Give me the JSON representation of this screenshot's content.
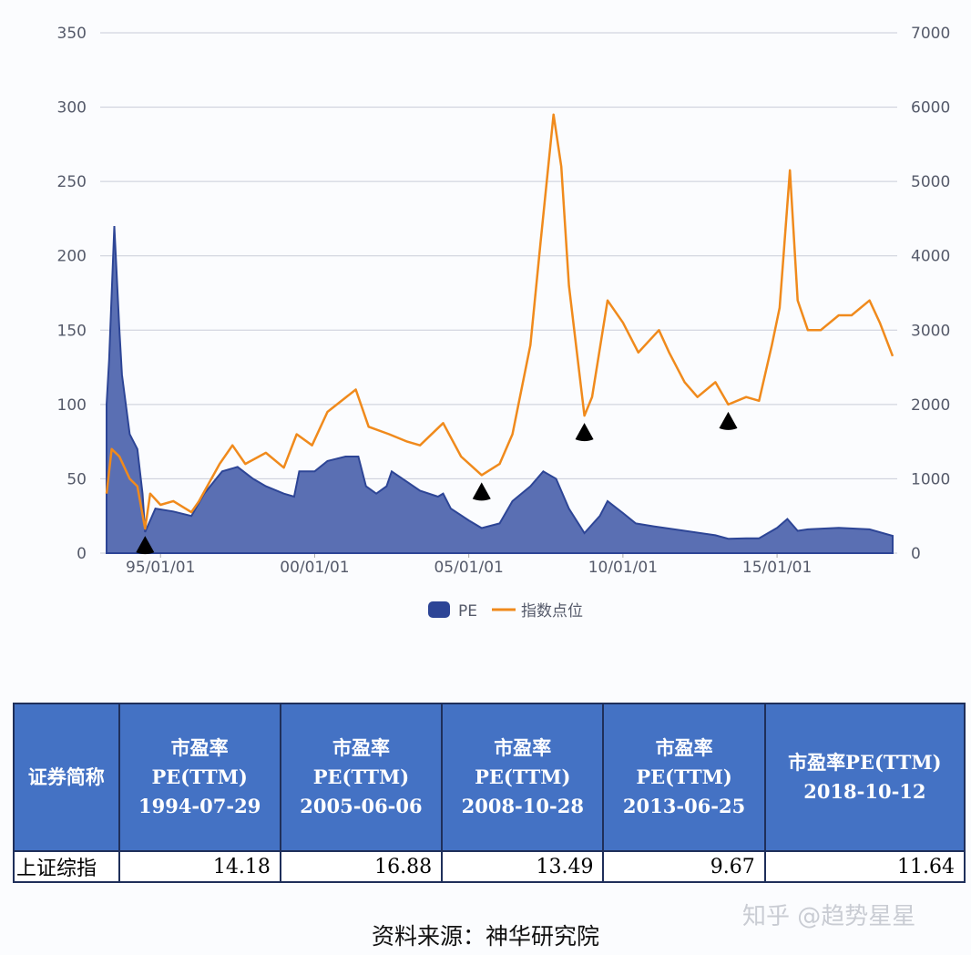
{
  "chart_data": {
    "type": "area+line",
    "x_ticks": [
      "95/01/01",
      "00/01/01",
      "05/01/01",
      "10/01/01",
      "15/01/01"
    ],
    "x_tick_dates": [
      "1995-01",
      "2000-01",
      "2005-01",
      "2010-01",
      "2015-01"
    ],
    "xlim": [
      "1993-04",
      "2018-10"
    ],
    "ylim_left": [
      0,
      350
    ],
    "yticks_left": [
      0,
      50,
      100,
      150,
      200,
      250,
      300,
      350
    ],
    "ylim_right": [
      0,
      7000
    ],
    "yticks_right": [
      0,
      1000,
      2000,
      3000,
      4000,
      5000,
      6000,
      7000
    ],
    "grid": true,
    "legend_position": "bottom",
    "series": [
      {
        "name": "PE",
        "type": "area",
        "axis": "left",
        "color": "#3f5aa8",
        "points": [
          [
            "1993-04",
            100
          ],
          [
            "1993-05",
            130
          ],
          [
            "1993-07",
            220
          ],
          [
            "1993-09",
            150
          ],
          [
            "1993-10",
            120
          ],
          [
            "1994-01",
            80
          ],
          [
            "1994-04",
            70
          ],
          [
            "1994-06",
            40
          ],
          [
            "1994-07",
            14.18
          ],
          [
            "1994-11",
            30
          ],
          [
            "1995-06",
            28
          ],
          [
            "1996-01",
            25
          ],
          [
            "1996-06",
            40
          ],
          [
            "1997-01",
            55
          ],
          [
            "1997-07",
            58
          ],
          [
            "1998-01",
            50
          ],
          [
            "1998-06",
            45
          ],
          [
            "1999-01",
            40
          ],
          [
            "1999-05",
            38
          ],
          [
            "1999-07",
            55
          ],
          [
            "2000-01",
            55
          ],
          [
            "2000-06",
            62
          ],
          [
            "2001-01",
            65
          ],
          [
            "2001-06",
            65
          ],
          [
            "2001-09",
            45
          ],
          [
            "2002-01",
            40
          ],
          [
            "2002-05",
            45
          ],
          [
            "2002-07",
            55
          ],
          [
            "2003-06",
            42
          ],
          [
            "2004-01",
            38
          ],
          [
            "2004-03",
            40
          ],
          [
            "2004-06",
            30
          ],
          [
            "2005-01",
            22
          ],
          [
            "2005-06",
            16.88
          ],
          [
            "2006-01",
            20
          ],
          [
            "2006-06",
            35
          ],
          [
            "2007-01",
            45
          ],
          [
            "2007-06",
            55
          ],
          [
            "2007-11",
            50
          ],
          [
            "2008-04",
            30
          ],
          [
            "2008-10",
            13.49
          ],
          [
            "2009-04",
            25
          ],
          [
            "2009-07",
            35
          ],
          [
            "2010-01",
            27
          ],
          [
            "2010-06",
            20
          ],
          [
            "2011-01",
            18
          ],
          [
            "2012-01",
            15
          ],
          [
            "2013-01",
            12
          ],
          [
            "2013-06",
            9.67
          ],
          [
            "2014-01",
            10
          ],
          [
            "2014-06",
            10
          ],
          [
            "2015-01",
            17
          ],
          [
            "2015-05",
            23
          ],
          [
            "2015-09",
            15
          ],
          [
            "2016-01",
            16
          ],
          [
            "2017-01",
            17
          ],
          [
            "2018-01",
            16
          ],
          [
            "2018-10",
            11.64
          ]
        ]
      },
      {
        "name": "指数点位",
        "type": "line",
        "axis": "right",
        "color": "#f08a1c",
        "points": [
          [
            "1993-04",
            800
          ],
          [
            "1993-06",
            1400
          ],
          [
            "1993-09",
            1300
          ],
          [
            "1994-01",
            1000
          ],
          [
            "1994-04",
            900
          ],
          [
            "1994-07",
            330
          ],
          [
            "1994-09",
            800
          ],
          [
            "1995-01",
            650
          ],
          [
            "1995-06",
            700
          ],
          [
            "1996-01",
            550
          ],
          [
            "1996-04",
            700
          ],
          [
            "1996-12",
            1200
          ],
          [
            "1997-05",
            1450
          ],
          [
            "1997-10",
            1200
          ],
          [
            "1998-06",
            1350
          ],
          [
            "1999-01",
            1150
          ],
          [
            "1999-06",
            1600
          ],
          [
            "1999-12",
            1450
          ],
          [
            "2000-06",
            1900
          ],
          [
            "2001-05",
            2200
          ],
          [
            "2001-10",
            1700
          ],
          [
            "2002-06",
            1600
          ],
          [
            "2003-01",
            1500
          ],
          [
            "2003-06",
            1450
          ],
          [
            "2004-03",
            1750
          ],
          [
            "2004-10",
            1300
          ],
          [
            "2005-06",
            1050
          ],
          [
            "2006-01",
            1200
          ],
          [
            "2006-06",
            1600
          ],
          [
            "2007-01",
            2800
          ],
          [
            "2007-05",
            4200
          ],
          [
            "2007-10",
            5900
          ],
          [
            "2008-01",
            5200
          ],
          [
            "2008-04",
            3600
          ],
          [
            "2008-10",
            1850
          ],
          [
            "2009-01",
            2100
          ],
          [
            "2009-07",
            3400
          ],
          [
            "2010-01",
            3100
          ],
          [
            "2010-07",
            2700
          ],
          [
            "2011-03",
            3000
          ],
          [
            "2011-07",
            2700
          ],
          [
            "2012-01",
            2300
          ],
          [
            "2012-06",
            2100
          ],
          [
            "2013-01",
            2300
          ],
          [
            "2013-06",
            2000
          ],
          [
            "2014-01",
            2100
          ],
          [
            "2014-06",
            2050
          ],
          [
            "2014-11",
            2800
          ],
          [
            "2015-02",
            3300
          ],
          [
            "2015-06",
            5150
          ],
          [
            "2015-09",
            3400
          ],
          [
            "2016-01",
            3000
          ],
          [
            "2016-06",
            3000
          ],
          [
            "2017-01",
            3200
          ],
          [
            "2017-06",
            3200
          ],
          [
            "2018-01",
            3400
          ],
          [
            "2018-05",
            3100
          ],
          [
            "2018-10",
            2650
          ]
        ]
      }
    ],
    "markers": [
      "1994-07",
      "2005-06",
      "2008-10",
      "2013-06"
    ],
    "marker_color": "#000000"
  },
  "legend": {
    "pe": "PE",
    "index": "指数点位"
  },
  "table": {
    "headers": [
      "证券简称",
      "市盈率 PE(TTM) 1994-07-29",
      "市盈率 PE(TTM) 2005-06-06",
      "市盈率 PE(TTM) 2008-10-28",
      "市盈率 PE(TTM) 2013-06-25",
      "市盈率PE(TTM) 2018-10-12"
    ],
    "rows": [
      [
        "上证综指",
        "14.18",
        "16.88",
        "13.49",
        "9.67",
        "11.64"
      ]
    ],
    "header_color": "#4472c4"
  },
  "source": "资料来源：神华研究院",
  "watermark": "知乎 @趋势星星"
}
